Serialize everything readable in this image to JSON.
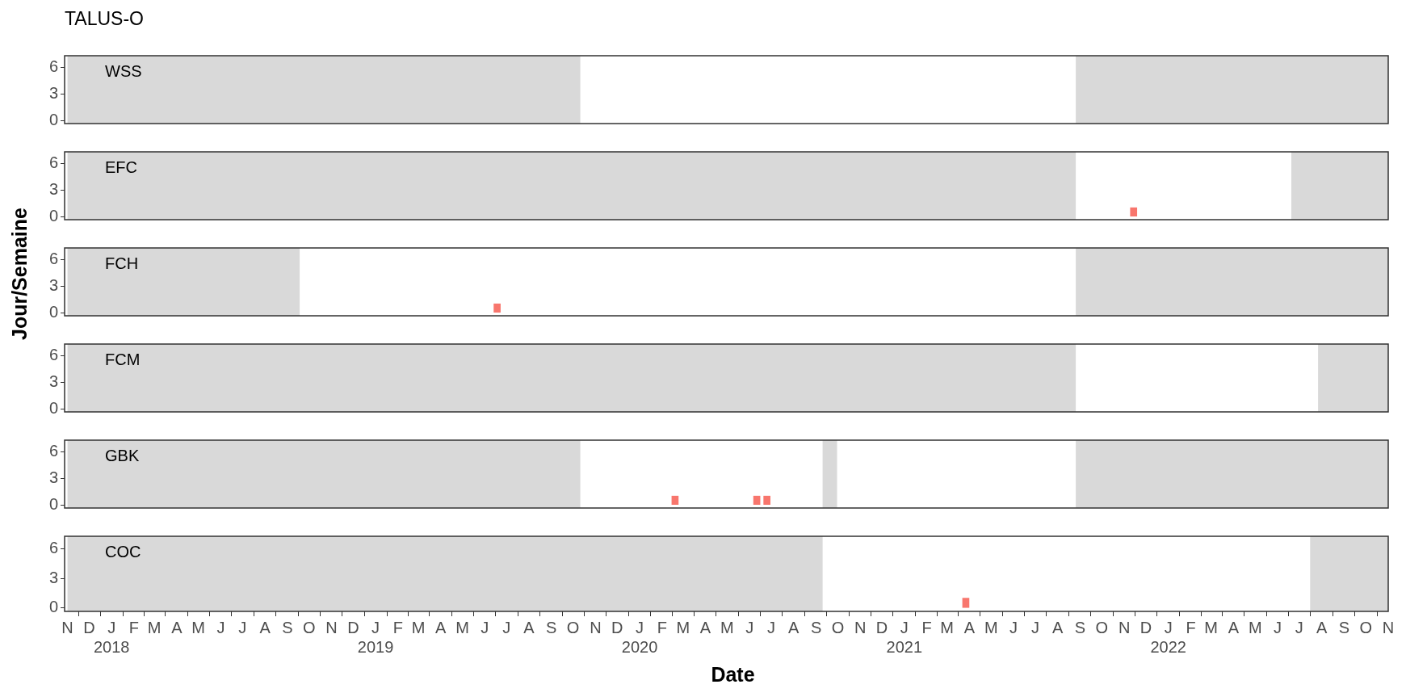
{
  "chart_data": [
    {
      "type": "bar",
      "title": "TALUS-O",
      "ylabel": "Jour/Semaine",
      "annotations": [
        "WSS"
      ],
      "color": "#f8766d",
      "xlim": [
        "2017-10-28",
        "2022-11-01"
      ],
      "ylim": [
        -0.35,
        7.3
      ],
      "yticks": [
        0,
        3,
        6
      ],
      "tick_labels": "y",
      "bands": [
        {
          "axis": "x",
          "from": "2017-11-01",
          "to": "2019-10-11",
          "color": "#d9d9d9"
        },
        {
          "axis": "x",
          "from": "2021-08-26",
          "to": "2022-11-01",
          "color": "#d9d9d9"
        }
      ]
    },
    {
      "type": "bar",
      "annotations": [
        "EFC"
      ],
      "x": [
        "2021-11-14"
      ],
      "values": [
        1
      ],
      "color": "#f8766d",
      "xlim": [
        "2017-10-28",
        "2022-11-01"
      ],
      "ylim": [
        -0.35,
        7.3
      ],
      "yticks": [
        0,
        3,
        6
      ],
      "tick_labels": "y",
      "bands": [
        {
          "axis": "x",
          "from": "2017-11-01",
          "to": "2021-08-26",
          "color": "#d9d9d9"
        },
        {
          "axis": "x",
          "from": "2022-06-20",
          "to": "2022-11-01",
          "color": "#d9d9d9"
        }
      ]
    },
    {
      "type": "bar",
      "annotations": [
        "FCH"
      ],
      "x": [
        "2019-06-18"
      ],
      "values": [
        1
      ],
      "color": "#f8766d",
      "xlim": [
        "2017-10-28",
        "2022-11-01"
      ],
      "ylim": [
        -0.35,
        7.3
      ],
      "yticks": [
        0,
        3,
        6
      ],
      "tick_labels": "y",
      "bands": [
        {
          "axis": "x",
          "from": "2017-11-01",
          "to": "2018-09-18",
          "color": "#d9d9d9"
        },
        {
          "axis": "x",
          "from": "2021-08-26",
          "to": "2022-11-01",
          "color": "#d9d9d9"
        }
      ]
    },
    {
      "type": "bar",
      "annotations": [
        "FCM"
      ],
      "color": "#f8766d",
      "xlim": [
        "2017-10-28",
        "2022-11-01"
      ],
      "ylim": [
        -0.35,
        7.3
      ],
      "yticks": [
        0,
        3,
        6
      ],
      "tick_labels": "y",
      "bands": [
        {
          "axis": "x",
          "from": "2017-11-01",
          "to": "2021-08-26",
          "color": "#d9d9d9"
        },
        {
          "axis": "x",
          "from": "2022-07-27",
          "to": "2022-11-01",
          "color": "#d9d9d9"
        }
      ]
    },
    {
      "type": "bar",
      "annotations": [
        "GBK"
      ],
      "x": [
        "2020-02-19",
        "2020-06-11",
        "2020-06-25"
      ],
      "values": [
        1,
        1,
        1
      ],
      "color": "#f8766d",
      "xlim": [
        "2017-10-28",
        "2022-11-01"
      ],
      "ylim": [
        -0.35,
        7.3
      ],
      "yticks": [
        0,
        3,
        6
      ],
      "tick_labels": "y",
      "bands": [
        {
          "axis": "x",
          "from": "2017-11-01",
          "to": "2019-10-11",
          "color": "#d9d9d9"
        },
        {
          "axis": "x",
          "from": "2020-09-10",
          "to": "2020-09-30",
          "color": "#d9d9d9"
        },
        {
          "axis": "x",
          "from": "2021-08-26",
          "to": "2022-11-01",
          "color": "#d9d9d9"
        }
      ]
    },
    {
      "type": "bar",
      "xlabel": "Date",
      "annotations": [
        "COC"
      ],
      "x": [
        "2021-03-27"
      ],
      "values": [
        1
      ],
      "color": "#f8766d",
      "xlim": [
        "2017-10-28",
        "2022-11-01"
      ],
      "ylim": [
        -0.35,
        7.3
      ],
      "yticks": [
        0,
        3,
        6
      ],
      "xticks": [
        {
          "value": "2017-11",
          "label": "N"
        },
        {
          "value": "2017-12",
          "label": "D"
        },
        {
          "value": "2018-01",
          "label": "J\n2018"
        },
        {
          "value": "2018-02",
          "label": "F"
        },
        {
          "value": "2018-03",
          "label": "M"
        },
        {
          "value": "2018-04",
          "label": "A"
        },
        {
          "value": "2018-05",
          "label": "M"
        },
        {
          "value": "2018-06",
          "label": "J"
        },
        {
          "value": "2018-07",
          "label": "J"
        },
        {
          "value": "2018-08",
          "label": "A"
        },
        {
          "value": "2018-09",
          "label": "S"
        },
        {
          "value": "2018-10",
          "label": "O"
        },
        {
          "value": "2018-11",
          "label": "N"
        },
        {
          "value": "2018-12",
          "label": "D"
        },
        {
          "value": "2019-01",
          "label": "J\n2019"
        },
        {
          "value": "2019-02",
          "label": "F"
        },
        {
          "value": "2019-03",
          "label": "M"
        },
        {
          "value": "2019-04",
          "label": "A"
        },
        {
          "value": "2019-05",
          "label": "M"
        },
        {
          "value": "2019-06",
          "label": "J"
        },
        {
          "value": "2019-07",
          "label": "J"
        },
        {
          "value": "2019-08",
          "label": "A"
        },
        {
          "value": "2019-09",
          "label": "S"
        },
        {
          "value": "2019-10",
          "label": "O"
        },
        {
          "value": "2019-11",
          "label": "N"
        },
        {
          "value": "2019-12",
          "label": "D"
        },
        {
          "value": "2020-01",
          "label": "J\n2020"
        },
        {
          "value": "2020-02",
          "label": "F"
        },
        {
          "value": "2020-03",
          "label": "M"
        },
        {
          "value": "2020-04",
          "label": "A"
        },
        {
          "value": "2020-05",
          "label": "M"
        },
        {
          "value": "2020-06",
          "label": "J"
        },
        {
          "value": "2020-07",
          "label": "J"
        },
        {
          "value": "2020-08",
          "label": "A"
        },
        {
          "value": "2020-09",
          "label": "S"
        },
        {
          "value": "2020-10",
          "label": "O"
        },
        {
          "value": "2020-11",
          "label": "N"
        },
        {
          "value": "2020-12",
          "label": "D"
        },
        {
          "value": "2021-01",
          "label": "J\n2021"
        },
        {
          "value": "2021-02",
          "label": "F"
        },
        {
          "value": "2021-03",
          "label": "M"
        },
        {
          "value": "2021-04",
          "label": "A"
        },
        {
          "value": "2021-05",
          "label": "M"
        },
        {
          "value": "2021-06",
          "label": "J"
        },
        {
          "value": "2021-07",
          "label": "J"
        },
        {
          "value": "2021-08",
          "label": "A"
        },
        {
          "value": "2021-09",
          "label": "S"
        },
        {
          "value": "2021-10",
          "label": "O"
        },
        {
          "value": "2021-11",
          "label": "N"
        },
        {
          "value": "2021-12",
          "label": "D"
        },
        {
          "value": "2022-01",
          "label": "J\n2022"
        },
        {
          "value": "2022-02",
          "label": "F"
        },
        {
          "value": "2022-03",
          "label": "M"
        },
        {
          "value": "2022-04",
          "label": "A"
        },
        {
          "value": "2022-05",
          "label": "M"
        },
        {
          "value": "2022-06",
          "label": "J"
        },
        {
          "value": "2022-07",
          "label": "J"
        },
        {
          "value": "2022-08",
          "label": "A"
        },
        {
          "value": "2022-09",
          "label": "S"
        },
        {
          "value": "2022-10",
          "label": "O"
        },
        {
          "value": "2022-11",
          "label": "N"
        }
      ],
      "bands": [
        {
          "axis": "x",
          "from": "2017-11-01",
          "to": "2020-09-10",
          "color": "#d9d9d9"
        },
        {
          "axis": "x",
          "from": "2022-07-16",
          "to": "2022-11-01",
          "color": "#d9d9d9"
        }
      ]
    }
  ]
}
